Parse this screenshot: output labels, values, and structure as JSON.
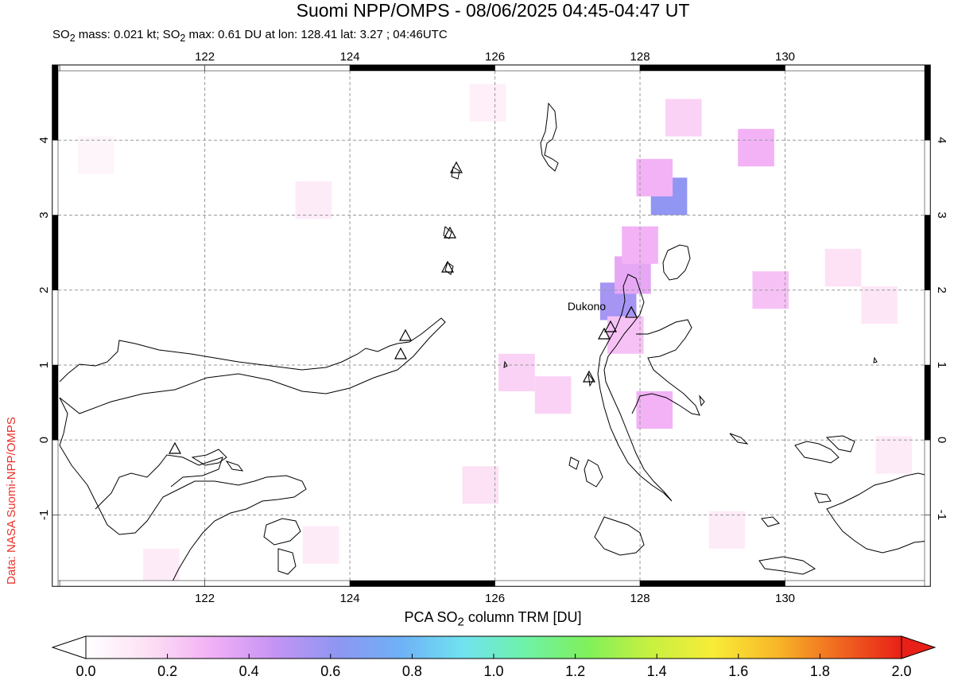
{
  "title": "Suomi NPP/OMPS - 08/06/2025 04:45-04:47 UT",
  "subtitle": {
    "mass_prefix": "SO",
    "mass_sub": "2",
    "mass_text": " mass: 0.021 kt; SO",
    "max_sub": "2",
    "max_text": " max: 0.61 DU at lon: 128.41 lat: 3.27 ; 04:46UTC"
  },
  "credit": "Data: NASA Suomi-NPP/OMPS",
  "map": {
    "lon_range": [
      119.9,
      132.0
    ],
    "lat_range": [
      -1.95,
      5.0
    ],
    "lon_ticks": [
      "122",
      "124",
      "126",
      "128",
      "130"
    ],
    "lat_ticks": [
      "4",
      "3",
      "2",
      "1",
      "0",
      "-1"
    ],
    "volcano": {
      "name": "Dukono",
      "lon": 127.88,
      "lat": 1.69
    }
  },
  "colorbar": {
    "title_prefix": "PCA SO",
    "title_sub": "2",
    "title_suffix": " column TRM [DU]",
    "ticks": [
      "0.0",
      "0.2",
      "0.4",
      "0.6",
      "0.8",
      "1.0",
      "1.2",
      "1.4",
      "1.6",
      "1.8",
      "2.0"
    ],
    "range": [
      0.0,
      2.0
    ],
    "colors": [
      "#ffffff",
      "#fde0f4",
      "#f2b0f6",
      "#c594f4",
      "#8f96f2",
      "#6fb0f6",
      "#70e2f0",
      "#6ef2a8",
      "#80f05a",
      "#c8f040",
      "#f8ec38",
      "#f8b828",
      "#f06820",
      "#e82018"
    ]
  },
  "chart_data": {
    "type": "heatmap",
    "title": "Suomi NPP/OMPS - 08/06/2025 04:45-04:47 UT",
    "xlabel": "",
    "ylabel": "",
    "xlim": [
      119.9,
      132.0
    ],
    "ylim": [
      -1.95,
      5.0
    ],
    "value_label": "PCA SO2 column TRM [DU]",
    "vlim": [
      0.0,
      2.0
    ],
    "max_value": 0.61,
    "max_location": {
      "lon": 128.41,
      "lat": 3.27
    },
    "cells": [
      {
        "lon": 128.4,
        "lat": 3.25,
        "value": 0.61
      },
      {
        "lon": 127.7,
        "lat": 1.85,
        "value": 0.55
      },
      {
        "lon": 128.2,
        "lat": 3.5,
        "value": 0.3
      },
      {
        "lon": 127.9,
        "lat": 2.2,
        "value": 0.35
      },
      {
        "lon": 128.0,
        "lat": 2.6,
        "value": 0.3
      },
      {
        "lon": 127.8,
        "lat": 1.4,
        "value": 0.25
      },
      {
        "lon": 128.2,
        "lat": 0.4,
        "value": 0.3
      },
      {
        "lon": 128.6,
        "lat": 4.3,
        "value": 0.2
      },
      {
        "lon": 129.6,
        "lat": 3.9,
        "value": 0.3
      },
      {
        "lon": 129.8,
        "lat": 2.0,
        "value": 0.25
      },
      {
        "lon": 126.3,
        "lat": 0.9,
        "value": 0.2
      },
      {
        "lon": 126.8,
        "lat": 0.6,
        "value": 0.2
      },
      {
        "lon": 125.8,
        "lat": -0.6,
        "value": 0.15
      },
      {
        "lon": 123.5,
        "lat": 3.2,
        "value": 0.1
      },
      {
        "lon": 130.8,
        "lat": 2.3,
        "value": 0.15
      },
      {
        "lon": 131.3,
        "lat": 1.8,
        "value": 0.12
      },
      {
        "lon": 121.4,
        "lat": -1.7,
        "value": 0.1
      },
      {
        "lon": 123.6,
        "lat": -1.4,
        "value": 0.1
      },
      {
        "lon": 129.2,
        "lat": -1.2,
        "value": 0.1
      },
      {
        "lon": 131.5,
        "lat": -0.2,
        "value": 0.1
      },
      {
        "lon": 120.5,
        "lat": 3.8,
        "value": 0.05
      },
      {
        "lon": 125.9,
        "lat": 4.5,
        "value": 0.08
      }
    ]
  }
}
